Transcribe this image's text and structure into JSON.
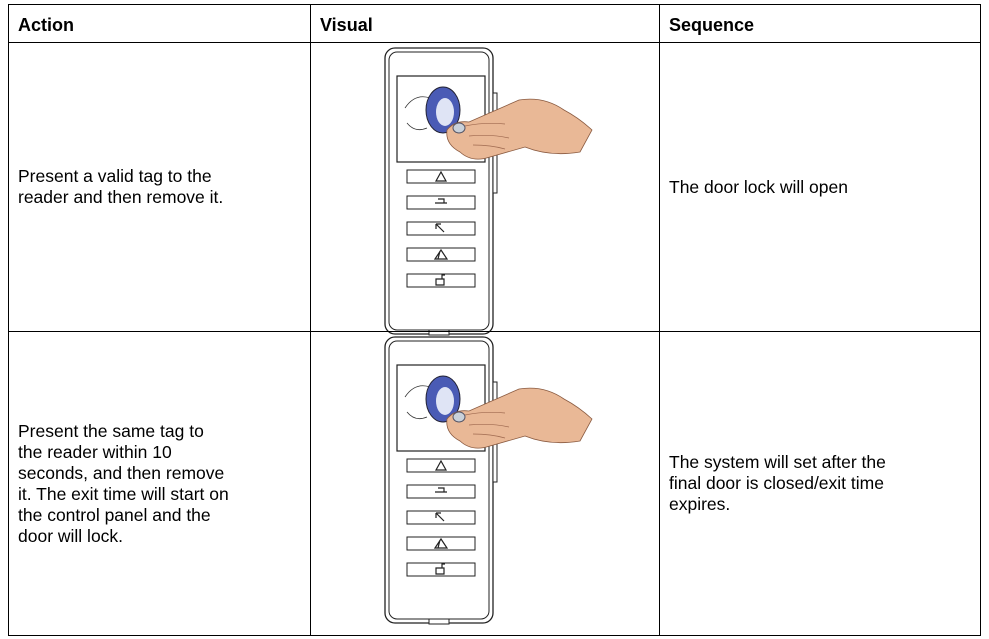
{
  "table": {
    "header": [
      "Action",
      "Visual",
      "Sequence"
    ],
    "rows": [
      {
        "action": [
          "Present a valid tag to the",
          "reader and then remove it."
        ],
        "sequence": [
          "The door lock will open"
        ]
      },
      {
        "action": [
          "Present the same tag to",
          "the reader within 10",
          "seconds, and then remove",
          "it. The exit time will start on",
          "the control panel and the",
          "door will lock."
        ],
        "sequence": [
          "The system will set after the",
          "final door is closed/exit time",
          "expires."
        ]
      }
    ]
  }
}
